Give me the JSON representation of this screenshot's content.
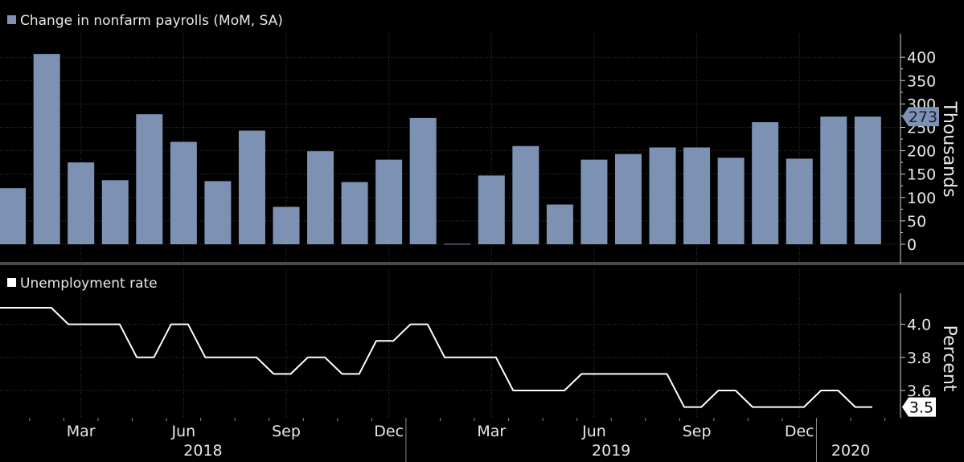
{
  "chart_data": [
    {
      "type": "bar",
      "legend": "Change in nonfarm payrolls (MoM, SA)",
      "ylabel": "Thousands",
      "ylim": [
        -40,
        440
      ],
      "yticks": [
        0,
        50,
        100,
        150,
        200,
        250,
        300,
        350,
        400
      ],
      "categories": [
        "2018-01",
        "2018-02",
        "2018-03",
        "2018-04",
        "2018-05",
        "2018-06",
        "2018-07",
        "2018-08",
        "2018-09",
        "2018-10",
        "2018-11",
        "2018-12",
        "2019-01",
        "2019-02",
        "2019-03",
        "2019-04",
        "2019-05",
        "2019-06",
        "2019-07",
        "2019-08",
        "2019-09",
        "2019-10",
        "2019-11",
        "2019-12",
        "2020-01",
        "2020-02"
      ],
      "values": [
        120,
        407,
        175,
        137,
        278,
        219,
        135,
        243,
        80,
        199,
        133,
        181,
        270,
        1,
        147,
        210,
        85,
        181,
        193,
        207,
        207,
        185,
        261,
        183,
        273,
        273
      ],
      "last_value_label": "273",
      "color": "#7d92b3"
    },
    {
      "type": "line",
      "legend": "Unemployment rate",
      "ylabel": "Percent",
      "ylim": [
        3.45,
        4.2
      ],
      "yticks": [
        "3.6",
        "3.8",
        "4.0"
      ],
      "x": [
        "2018-01",
        "2018-02",
        "2018-03",
        "2018-04",
        "2018-05",
        "2018-06",
        "2018-07",
        "2018-08",
        "2018-09",
        "2018-10",
        "2018-11",
        "2018-12",
        "2019-01",
        "2019-02",
        "2019-03",
        "2019-04",
        "2019-05",
        "2019-06",
        "2019-07",
        "2019-08",
        "2019-09",
        "2019-10",
        "2019-11",
        "2019-12",
        "2020-01",
        "2020-02"
      ],
      "values": [
        4.1,
        4.1,
        4.0,
        4.0,
        3.8,
        4.0,
        3.8,
        3.8,
        3.7,
        3.8,
        3.7,
        3.9,
        4.0,
        3.8,
        3.8,
        3.6,
        3.6,
        3.7,
        3.7,
        3.7,
        3.5,
        3.6,
        3.5,
        3.5,
        3.6,
        3.5
      ],
      "last_value_label": "3.5",
      "color": "#ffffff"
    }
  ],
  "x_axis": {
    "month_ticks": [
      {
        "label": "Mar",
        "index": 2
      },
      {
        "label": "Jun",
        "index": 5
      },
      {
        "label": "Sep",
        "index": 8
      },
      {
        "label": "Dec",
        "index": 11
      },
      {
        "label": "Mar",
        "index": 14
      },
      {
        "label": "Jun",
        "index": 17
      },
      {
        "label": "Sep",
        "index": 20
      },
      {
        "label": "Dec",
        "index": 23
      }
    ],
    "year_labels": [
      {
        "label": "2018",
        "start": 0,
        "end": 11
      },
      {
        "label": "2019",
        "start": 12,
        "end": 23
      },
      {
        "label": "2020",
        "start": 24,
        "end": 25
      }
    ]
  }
}
